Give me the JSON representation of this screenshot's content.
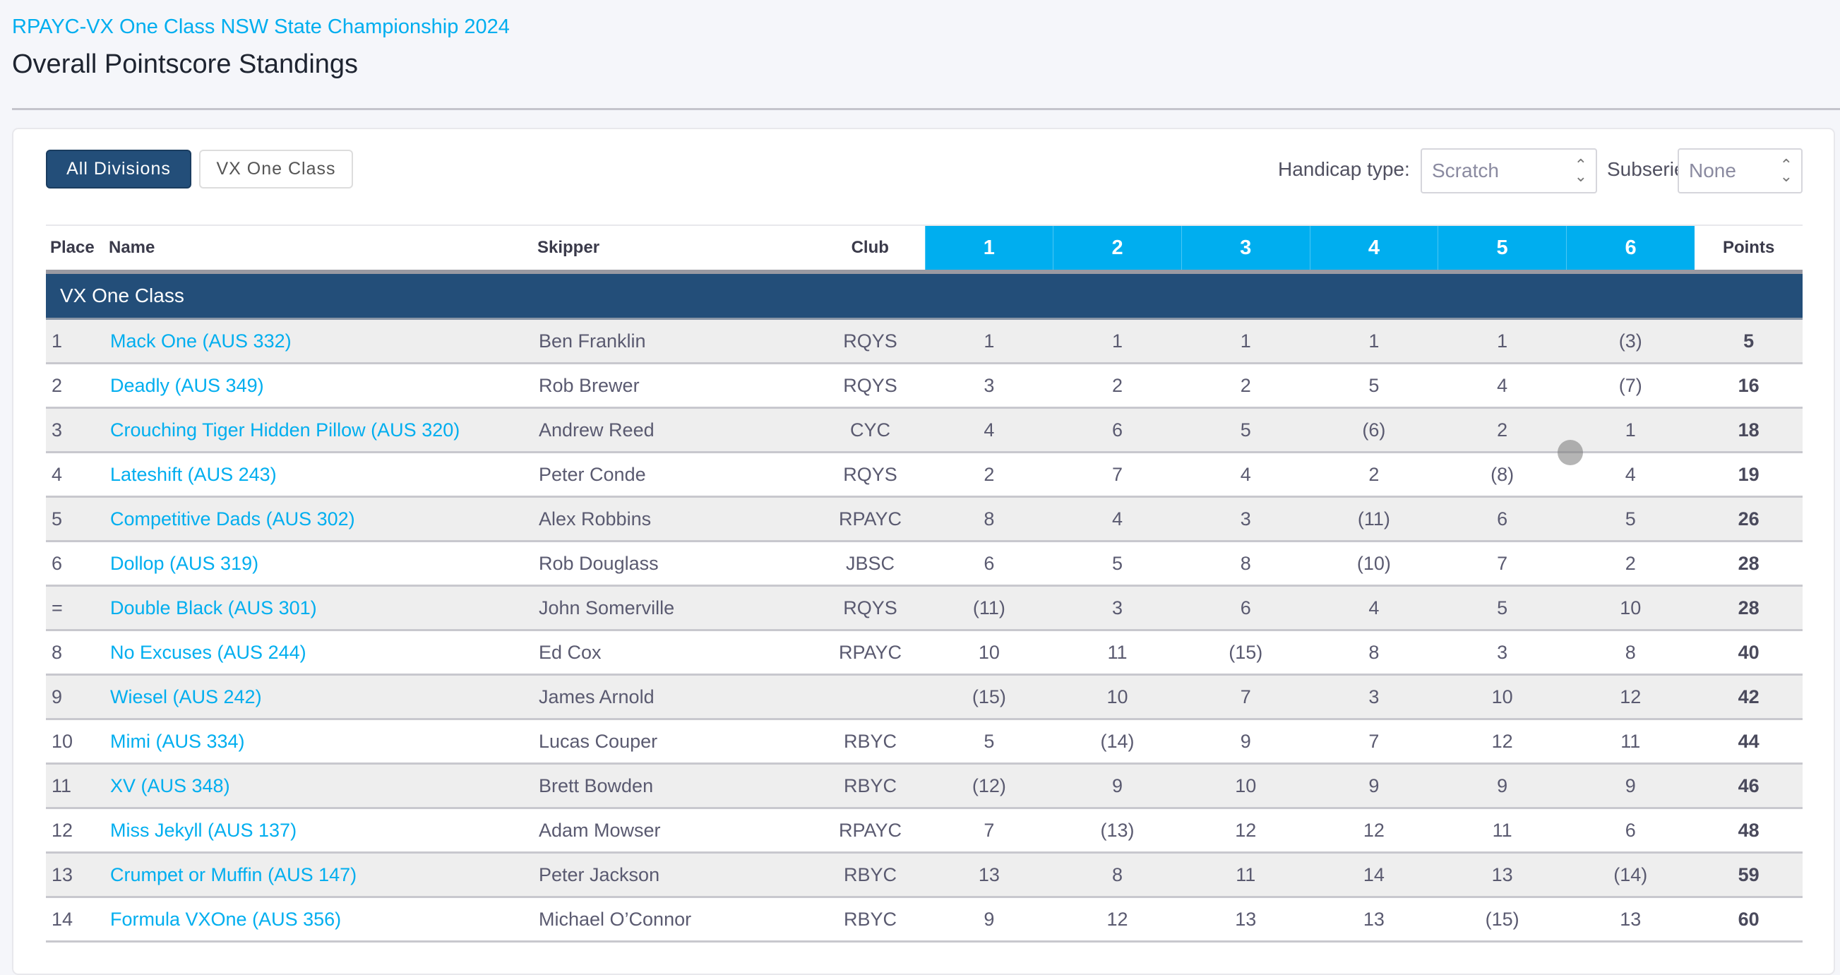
{
  "header": {
    "event_title": "RPAYC-VX One Class NSW State Championship 2024",
    "page_title": "Overall Pointscore Standings"
  },
  "filters": {
    "divisions": [
      {
        "label": "All Divisions",
        "active": true
      },
      {
        "label": "VX One Class",
        "active": false
      }
    ],
    "handicap_label": "Handicap type:",
    "handicap_value": "Scratch",
    "subseries_label": "Subseries:",
    "subseries_value": "None"
  },
  "colors": {
    "accent": "#00aeef",
    "group_header": "#234e79"
  },
  "table": {
    "columns": {
      "place": "Place",
      "name": "Name",
      "skipper": "Skipper",
      "club": "Club",
      "races": [
        "1",
        "2",
        "3",
        "4",
        "5",
        "6"
      ],
      "points": "Points"
    },
    "group": "VX One Class",
    "rows": [
      {
        "place": "1",
        "name": "Mack One (AUS 332)",
        "skipper": "Ben Franklin",
        "club": "RQYS",
        "races": [
          "1",
          "1",
          "1",
          "1",
          "1",
          "(3)"
        ],
        "points": "5"
      },
      {
        "place": "2",
        "name": "Deadly (AUS 349)",
        "skipper": "Rob Brewer",
        "club": "RQYS",
        "races": [
          "3",
          "2",
          "2",
          "5",
          "4",
          "(7)"
        ],
        "points": "16"
      },
      {
        "place": "3",
        "name": "Crouching Tiger Hidden Pillow (AUS 320)",
        "skipper": "Andrew Reed",
        "club": "CYC",
        "races": [
          "4",
          "6",
          "5",
          "(6)",
          "2",
          "1"
        ],
        "points": "18"
      },
      {
        "place": "4",
        "name": "Lateshift (AUS 243)",
        "skipper": "Peter Conde",
        "club": "RQYS",
        "races": [
          "2",
          "7",
          "4",
          "2",
          "(8)",
          "4"
        ],
        "points": "19"
      },
      {
        "place": "5",
        "name": "Competitive Dads (AUS 302)",
        "skipper": "Alex Robbins",
        "club": "RPAYC",
        "races": [
          "8",
          "4",
          "3",
          "(11)",
          "6",
          "5"
        ],
        "points": "26"
      },
      {
        "place": "6",
        "name": "Dollop (AUS 319)",
        "skipper": "Rob Douglass",
        "club": "JBSC",
        "races": [
          "6",
          "5",
          "8",
          "(10)",
          "7",
          "2"
        ],
        "points": "28"
      },
      {
        "place": "=",
        "name": "Double Black (AUS 301)",
        "skipper": "John Somerville",
        "club": "RQYS",
        "races": [
          "(11)",
          "3",
          "6",
          "4",
          "5",
          "10"
        ],
        "points": "28"
      },
      {
        "place": "8",
        "name": "No Excuses (AUS 244)",
        "skipper": "Ed Cox",
        "club": "RPAYC",
        "races": [
          "10",
          "11",
          "(15)",
          "8",
          "3",
          "8"
        ],
        "points": "40"
      },
      {
        "place": "9",
        "name": "Wiesel (AUS 242)",
        "skipper": "James Arnold",
        "club": "",
        "races": [
          "(15)",
          "10",
          "7",
          "3",
          "10",
          "12"
        ],
        "points": "42"
      },
      {
        "place": "10",
        "name": "Mimi (AUS 334)",
        "skipper": "Lucas Couper",
        "club": "RBYC",
        "races": [
          "5",
          "(14)",
          "9",
          "7",
          "12",
          "11"
        ],
        "points": "44"
      },
      {
        "place": "11",
        "name": "XV (AUS 348)",
        "skipper": "Brett Bowden",
        "club": "RBYC",
        "races": [
          "(12)",
          "9",
          "10",
          "9",
          "9",
          "9"
        ],
        "points": "46"
      },
      {
        "place": "12",
        "name": "Miss Jekyll (AUS 137)",
        "skipper": "Adam Mowser",
        "club": "RPAYC",
        "races": [
          "7",
          "(13)",
          "12",
          "12",
          "11",
          "6"
        ],
        "points": "48"
      },
      {
        "place": "13",
        "name": "Crumpet or Muffin (AUS 147)",
        "skipper": "Peter Jackson",
        "club": "RBYC",
        "races": [
          "13",
          "8",
          "11",
          "14",
          "13",
          "(14)"
        ],
        "points": "59"
      },
      {
        "place": "14",
        "name": "Formula VXOne (AUS 356)",
        "skipper": "Michael O’Connor",
        "club": "RBYC",
        "races": [
          "9",
          "12",
          "13",
          "13",
          "(15)",
          "13"
        ],
        "points": "60"
      }
    ]
  }
}
